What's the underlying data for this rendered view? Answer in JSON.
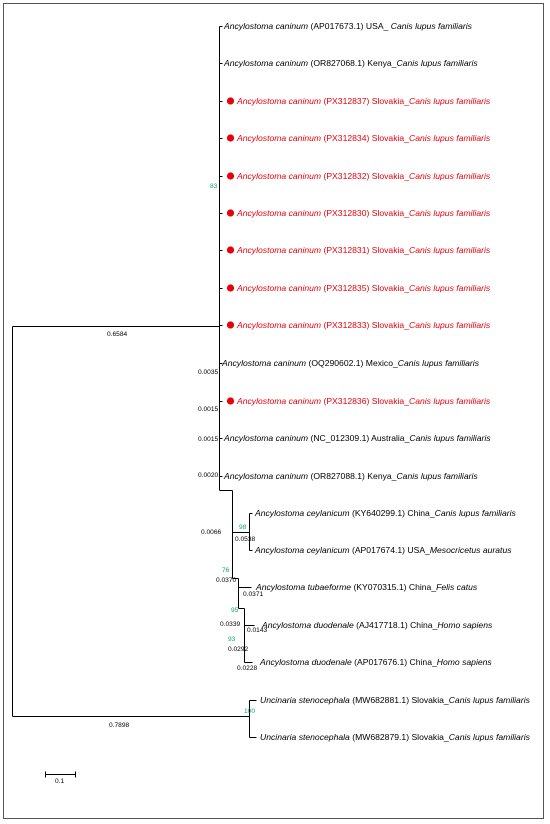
{
  "taxa": [
    {
      "species": "Ancylostoma caninum",
      "accession": " (AP017673.1) USA_ ",
      "host": "Canis lupus familiaris",
      "highlight": false
    },
    {
      "species": "Ancylostoma caninum",
      "accession": " (OR827068.1) Kenya_",
      "host": "Canis lupus familiaris",
      "highlight": false
    },
    {
      "species": "Ancylostoma caninum",
      "accession": " (PX312837) Slovakia_",
      "host": "Canis lupus familiaris",
      "highlight": true
    },
    {
      "species": "Ancylostoma caninum",
      "accession": " (PX312834) Slovakia_",
      "host": "Canis lupus familiaris",
      "highlight": true
    },
    {
      "species": "Ancylostoma caninum",
      "accession": " (PX312832) Slovakia_",
      "host": "Canis lupus familiaris",
      "highlight": true
    },
    {
      "species": "Ancylostoma caninum",
      "accession": " (PX312830) Slovakia_",
      "host": "Canis lupus familiaris",
      "highlight": true
    },
    {
      "species": "Ancylostoma caninum",
      "accession": " (PX312831) Slovakia_",
      "host": "Canis lupus familiaris",
      "highlight": true
    },
    {
      "species": "Ancylostoma caninum",
      "accession": " (PX312835) Slovakia_",
      "host": "Canis lupus familiaris",
      "highlight": true
    },
    {
      "species": "Ancylostoma caninum",
      "accession": " (PX312833) Slovakia_",
      "host": "Canis lupus familiaris",
      "highlight": true
    },
    {
      "species": "Ancylostoma caninum",
      "accession": " (OQ290602.1) Mexico_",
      "host": "Canis lupus familiaris",
      "highlight": false
    },
    {
      "species": "Ancylostoma caninum",
      "accession": " (PX312836) Slovakia_",
      "host": "Canis lupus familiaris",
      "highlight": true
    },
    {
      "species": "Ancylostoma caninum",
      "accession": " (NC_012309.1) Australia_",
      "host": "Canis lupus familiaris",
      "highlight": false
    },
    {
      "species": "Ancylostoma caninum",
      "accession": " (OR827088.1) Kenya_",
      "host": "Canis lupus familiaris",
      "highlight": false
    },
    {
      "species": "Ancylostoma ceylanicum",
      "accession": " (KY640299.1) China_",
      "host": "Canis lupus familiaris",
      "highlight": false
    },
    {
      "species": "Ancylostoma ceylanicum",
      "accession": " (AP017674.1) USA_",
      "host": "Mesocricetus auratus",
      "highlight": false
    },
    {
      "species": "Ancylostoma tubaeforme",
      "accession": " (KY070315.1) China_",
      "host": "Felis catus",
      "highlight": false
    },
    {
      "species": "Ancylostoma duodenale",
      "accession": " (AJ417718.1) China_",
      "host": "Homo sapiens",
      "highlight": false
    },
    {
      "species": "Ancylostoma duodenale",
      "accession": "  (AP017676.1)  China_",
      "host": "Homo sapiens",
      "highlight": false
    },
    {
      "species": "Uncinaria stenocephala",
      "accession": " (MW682881.1) Slovakia_",
      "host": "Canis lupus familiaris",
      "highlight": false
    },
    {
      "species": "Uncinaria stenocephala",
      "accession": " (MW682879.1) Slovakia_",
      "host": "Canis lupus familiaris",
      "highlight": false
    }
  ],
  "branch_lengths": {
    "root_caninum": "0.6584",
    "root_uncinaria": "0.7898",
    "mexico": "0.0035",
    "px312836": "0.0015",
    "australia": "0.0015",
    "kenya_or827088": "0.0020",
    "others_clade": "0.0066",
    "ceylanicum_pair": "0.0538",
    "ceylanicum_tubae_duod": "0.0370",
    "tubaeforme": "0.0371",
    "tubae_duod": "0.0339",
    "duodenale_aj": "0.0143",
    "duodenale_pair": "0.0292",
    "duodenale_ap": "0.0228"
  },
  "bootstrap": {
    "caninum_clade": "83",
    "ceylanicum": "98",
    "ceylanicum_tubae_duod": "76",
    "tubae_duod": "95",
    "duodenale": "93",
    "uncinaria": "100"
  },
  "scale_bar": {
    "label": "0.1"
  },
  "colors": {
    "highlight": "#e8000b",
    "bootstrap": "#12a37a",
    "branch": "#000000"
  }
}
